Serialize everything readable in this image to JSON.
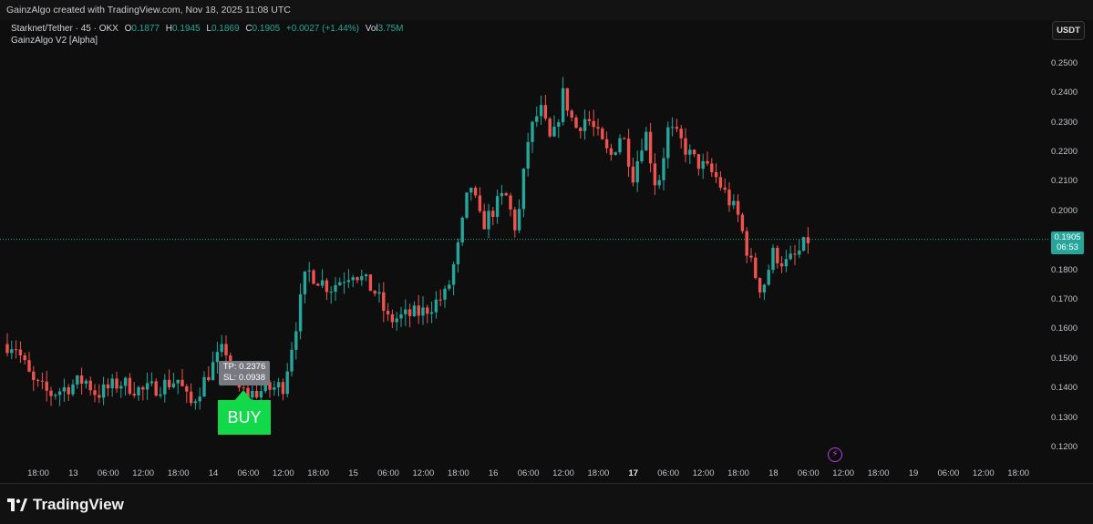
{
  "topbar": {
    "text": "GainzAlgo created with TradingView.com, Nov 18, 2025 11:08 UTC"
  },
  "legend": {
    "symbol": "Starknet/Tether · 45 · OKX",
    "open_label": "O",
    "open": "0.1877",
    "high_label": "H",
    "high": "0.1945",
    "low_label": "L",
    "low": "0.1869",
    "close_label": "C",
    "close": "0.1905",
    "change": "+0.0027 (+1.44%)",
    "vol_label": "Vol",
    "vol": "3.75M",
    "indicator": "GainzAlgo V2 [Alpha]"
  },
  "currency_button": "USDT",
  "y_axis": [
    "0.2500",
    "0.2400",
    "0.2300",
    "0.2200",
    "0.2100",
    "0.2000",
    "0.1800",
    "0.1700",
    "0.1600",
    "0.1500",
    "0.1400",
    "0.1300",
    "0.1200"
  ],
  "x_axis": [
    {
      "t": "18:00"
    },
    {
      "t": "13",
      "bold": false
    },
    {
      "t": "06:00"
    },
    {
      "t": "12:00"
    },
    {
      "t": "18:00"
    },
    {
      "t": "14"
    },
    {
      "t": "06:00"
    },
    {
      "t": "12:00"
    },
    {
      "t": "18:00"
    },
    {
      "t": "15"
    },
    {
      "t": "06:00"
    },
    {
      "t": "12:00"
    },
    {
      "t": "18:00"
    },
    {
      "t": "16"
    },
    {
      "t": "06:00"
    },
    {
      "t": "12:00"
    },
    {
      "t": "18:00"
    },
    {
      "t": "17",
      "bold": true
    },
    {
      "t": "06:00"
    },
    {
      "t": "12:00"
    },
    {
      "t": "18:00"
    },
    {
      "t": "18"
    },
    {
      "t": "06:00"
    },
    {
      "t": "12:00"
    },
    {
      "t": "18:00"
    },
    {
      "t": "19"
    },
    {
      "t": "06:00"
    },
    {
      "t": "12:00"
    },
    {
      "t": "18:00"
    }
  ],
  "price_tag": {
    "price": "0.1905",
    "countdown": "06:53"
  },
  "signal": {
    "tp": "TP: 0.2376",
    "sl": "SL: 0.0938",
    "label": "BUY"
  },
  "footer": {
    "brand": "TradingView"
  },
  "colors": {
    "up": "#26a69a",
    "down": "#ef5350",
    "buy": "#12d94a",
    "bg": "#0e0e0e"
  },
  "chart_data": {
    "type": "candlestick",
    "symbol": "Starknet/Tether",
    "timeframe_minutes": 45,
    "ylim": [
      0.115,
      0.255
    ],
    "last_price": 0.1905,
    "anchors": [
      {
        "t": "Nov 12 14:00",
        "p": 0.155
      },
      {
        "t": "Nov 12 17:00",
        "p": 0.142
      },
      {
        "t": "Nov 12 20:00",
        "p": 0.138
      },
      {
        "t": "Nov 13 02:00",
        "p": 0.143
      },
      {
        "t": "Nov 13 04:00",
        "p": 0.138
      },
      {
        "t": "Nov 13 08:00",
        "p": 0.142
      },
      {
        "t": "Nov 13 12:00",
        "p": 0.139
      },
      {
        "t": "Nov 13 18:00",
        "p": 0.143
      },
      {
        "t": "Nov 13 20:00",
        "p": 0.134
      },
      {
        "t": "Nov 14 00:00",
        "p": 0.148
      },
      {
        "t": "Nov 14 02:00",
        "p": 0.154
      },
      {
        "t": "Nov 14 04:00",
        "p": 0.14
      },
      {
        "t": "Nov 14 06:00",
        "p": 0.138
      },
      {
        "t": "Nov 14 12:00",
        "p": 0.141
      },
      {
        "t": "Nov 14 14:00",
        "p": 0.16
      },
      {
        "t": "Nov 14 16:00",
        "p": 0.18
      },
      {
        "t": "Nov 14 20:00",
        "p": 0.174
      },
      {
        "t": "Nov 15 00:00",
        "p": 0.18
      },
      {
        "t": "Nov 15 04:00",
        "p": 0.172
      },
      {
        "t": "Nov 15 06:00",
        "p": 0.163
      },
      {
        "t": "Nov 15 12:00",
        "p": 0.166
      },
      {
        "t": "Nov 15 16:00",
        "p": 0.172
      },
      {
        "t": "Nov 15 18:00",
        "p": 0.188
      },
      {
        "t": "Nov 15 20:00",
        "p": 0.21
      },
      {
        "t": "Nov 15 22:00",
        "p": 0.195
      },
      {
        "t": "Nov 16 02:00",
        "p": 0.206
      },
      {
        "t": "Nov 16 04:00",
        "p": 0.193
      },
      {
        "t": "Nov 16 06:00",
        "p": 0.225
      },
      {
        "t": "Nov 16 08:00",
        "p": 0.235
      },
      {
        "t": "Nov 16 10:00",
        "p": 0.222
      },
      {
        "t": "Nov 16 12:00",
        "p": 0.24
      },
      {
        "t": "Nov 16 14:00",
        "p": 0.228
      },
      {
        "t": "Nov 16 16:00",
        "p": 0.232
      },
      {
        "t": "Nov 16 20:00",
        "p": 0.218
      },
      {
        "t": "Nov 16 22:00",
        "p": 0.227
      },
      {
        "t": "Nov 17 00:00",
        "p": 0.212
      },
      {
        "t": "Nov 17 02:00",
        "p": 0.228
      },
      {
        "t": "Nov 17 04:00",
        "p": 0.207
      },
      {
        "t": "Nov 17 06:00",
        "p": 0.228
      },
      {
        "t": "Nov 17 08:00",
        "p": 0.224
      },
      {
        "t": "Nov 17 10:00",
        "p": 0.218
      },
      {
        "t": "Nov 17 14:00",
        "p": 0.212
      },
      {
        "t": "Nov 17 16:00",
        "p": 0.205
      },
      {
        "t": "Nov 17 18:00",
        "p": 0.198
      },
      {
        "t": "Nov 17 20:00",
        "p": 0.183
      },
      {
        "t": "Nov 17 22:00",
        "p": 0.173
      },
      {
        "t": "Nov 18 00:00",
        "p": 0.186
      },
      {
        "t": "Nov 18 02:00",
        "p": 0.182
      },
      {
        "t": "Nov 18 04:00",
        "p": 0.185
      },
      {
        "t": "Nov 18 06:00",
        "p": 0.1905
      }
    ]
  }
}
